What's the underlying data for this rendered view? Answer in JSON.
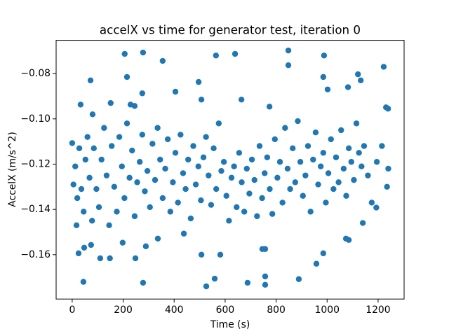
{
  "chart_data": {
    "type": "scatter",
    "title": "accelX vs time for generator test, iteration 0",
    "xlabel": "Time (s)",
    "ylabel": "AccelX (m/s^2)",
    "color": "#1f77b4",
    "xlim": [
      -63,
      1302
    ],
    "ylim": [
      -0.1796,
      -0.0653
    ],
    "xticks": [
      0,
      200,
      400,
      600,
      800,
      1000,
      1200
    ],
    "yticks": [
      {
        "value": -0.16,
        "label": "−0.16"
      },
      {
        "value": -0.14,
        "label": "−0.14"
      },
      {
        "value": -0.12,
        "label": "−0.12"
      },
      {
        "value": -0.1,
        "label": "−0.10"
      },
      {
        "value": -0.08,
        "label": "−0.08"
      }
    ],
    "x": [
      206,
      278,
      564,
      639,
      848,
      988,
      1222,
      72,
      215,
      355,
      848,
      985,
      1121,
      496,
      405,
      275,
      1132,
      1002,
      1082,
      33,
      151,
      664,
      507,
      774,
      1231,
      1239,
      80,
      229,
      245,
      526,
      44,
      278,
      688,
      757,
      757,
      889,
      559,
      958,
      507,
      581,
      985,
      25,
      110,
      148,
      248,
      746,
      757,
      47,
      74,
      289,
      198,
      336,
      438,
      1074,
      1085,
      1140,
      1193,
      17,
      0,
      5,
      12,
      20,
      28,
      36,
      45,
      52,
      60,
      68,
      78,
      85,
      95,
      105,
      115,
      125,
      135,
      145,
      155,
      165,
      175,
      185,
      195,
      205,
      215,
      225,
      235,
      245,
      255,
      265,
      275,
      285,
      295,
      305,
      315,
      325,
      335,
      345,
      355,
      365,
      375,
      385,
      395,
      405,
      415,
      425,
      435,
      445,
      455,
      465,
      475,
      485,
      495,
      505,
      515,
      525,
      535,
      545,
      555,
      565,
      575,
      585,
      595,
      605,
      615,
      625,
      635,
      645,
      655,
      665,
      675,
      685,
      695,
      705,
      715,
      725,
      735,
      745,
      755,
      765,
      775,
      785,
      795,
      805,
      815,
      825,
      835,
      845,
      855,
      865,
      875,
      885,
      895,
      905,
      915,
      925,
      935,
      945,
      955,
      965,
      975,
      985,
      995,
      1005,
      1015,
      1025,
      1035,
      1045,
      1055,
      1065,
      1075,
      1085,
      1095,
      1105,
      1115,
      1125,
      1135,
      1145,
      1160,
      1175,
      1195,
      1215,
      1235,
      1240
    ],
    "values": [
      -0.0713,
      -0.0707,
      -0.072,
      -0.0713,
      -0.0698,
      -0.072,
      -0.077,
      -0.083,
      -0.0815,
      -0.0744,
      -0.0763,
      -0.0815,
      -0.0803,
      -0.0837,
      -0.088,
      -0.0887,
      -0.083,
      -0.087,
      -0.086,
      -0.0937,
      -0.093,
      -0.0915,
      -0.0915,
      -0.0946,
      -0.0949,
      -0.0955,
      -0.098,
      -0.0937,
      -0.0943,
      -0.174,
      -0.172,
      -0.1724,
      -0.1724,
      -0.1733,
      -0.1696,
      -0.1708,
      -0.1706,
      -0.164,
      -0.16,
      -0.16,
      -0.1594,
      -0.1594,
      -0.1616,
      -0.1616,
      -0.1616,
      -0.1575,
      -0.1575,
      -0.1569,
      -0.1557,
      -0.1563,
      -0.1547,
      -0.1529,
      -0.1507,
      -0.1529,
      -0.1535,
      -0.146,
      -0.1392,
      -0.147,
      -0.1107,
      -0.129,
      -0.121,
      -0.135,
      -0.113,
      -0.131,
      -0.141,
      -0.118,
      -0.108,
      -0.126,
      -0.145,
      -0.113,
      -0.131,
      -0.139,
      -0.118,
      -0.104,
      -0.125,
      -0.147,
      -0.112,
      -0.13,
      -0.141,
      -0.108,
      -0.121,
      -0.135,
      -0.102,
      -0.126,
      -0.114,
      -0.143,
      -0.128,
      -0.119,
      -0.107,
      -0.132,
      -0.123,
      -0.139,
      -0.111,
      -0.127,
      -0.104,
      -0.118,
      -0.135,
      -0.122,
      -0.109,
      -0.141,
      -0.128,
      -0.115,
      -0.137,
      -0.107,
      -0.124,
      -0.131,
      -0.118,
      -0.144,
      -0.112,
      -0.129,
      -0.121,
      -0.136,
      -0.117,
      -0.108,
      -0.125,
      -0.138,
      -0.113,
      -0.131,
      -0.102,
      -0.123,
      -0.119,
      -0.134,
      -0.145,
      -0.126,
      -0.121,
      -0.139,
      -0.115,
      -0.128,
      -0.141,
      -0.122,
      -0.133,
      -0.118,
      -0.127,
      -0.143,
      -0.112,
      -0.135,
      -0.124,
      -0.117,
      -0.131,
      -0.142,
      -0.109,
      -0.126,
      -0.119,
      -0.137,
      -0.104,
      -0.122,
      -0.131,
      -0.113,
      -0.128,
      -0.101,
      -0.119,
      -0.134,
      -0.125,
      -0.112,
      -0.141,
      -0.118,
      -0.106,
      -0.129,
      -0.121,
      -0.115,
      -0.137,
      -0.124,
      -0.109,
      -0.131,
      -0.117,
      -0.128,
      -0.105,
      -0.122,
      -0.134,
      -0.113,
      -0.119,
      -0.127,
      -0.102,
      -0.115,
      -0.121,
      -0.112,
      -0.125,
      -0.137,
      -0.119,
      -0.112,
      -0.13,
      -0.122
    ]
  }
}
